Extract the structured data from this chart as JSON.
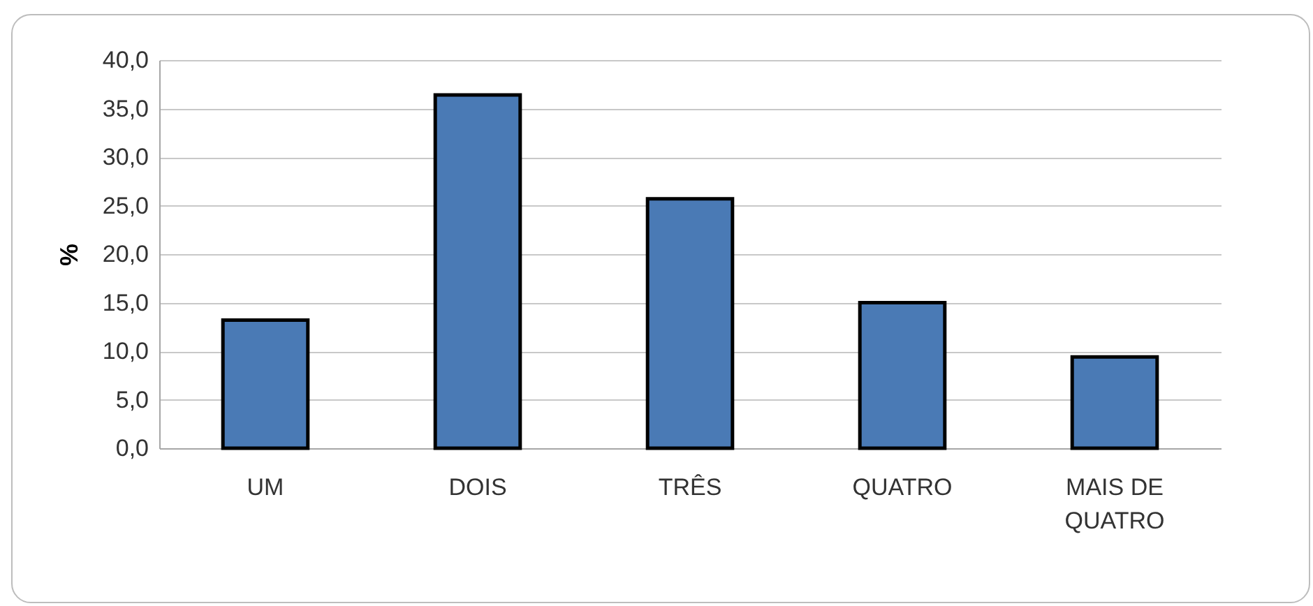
{
  "chart_data": {
    "type": "bar",
    "ylabel": "%",
    "categories": [
      "UM",
      "DOIS",
      "TRÊS",
      "QUATRO",
      "MAIS DE QUATRO"
    ],
    "values": [
      13.2,
      36.4,
      25.7,
      15.0,
      9.4
    ],
    "color": "#4a7ab5",
    "ylim": [
      0,
      40
    ],
    "yticks": [
      {
        "value": 0,
        "label": "0,0"
      },
      {
        "value": 5,
        "label": "5,0"
      },
      {
        "value": 10,
        "label": "10,0"
      },
      {
        "value": 15,
        "label": "15,0"
      },
      {
        "value": 20,
        "label": "20,0"
      },
      {
        "value": 25,
        "label": "25,0"
      },
      {
        "value": 30,
        "label": "30,0"
      },
      {
        "value": 35,
        "label": "35,0"
      },
      {
        "value": 40,
        "label": "40,0"
      }
    ],
    "grid": "y"
  }
}
